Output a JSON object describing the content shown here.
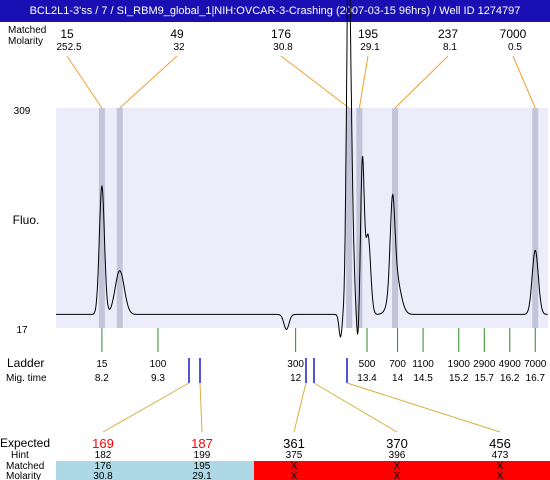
{
  "title": "BCL2L1-3'ss / 7 / SI_RBM9_global_1|NIH:OVCAR-3-Crashing (2007-03-15 96hrs) / Well ID 1274797",
  "colors": {
    "title_bg": "#1a0fb3",
    "plot_bg": "#ececfb",
    "peak_band": "#c4c4d8",
    "peak_connector": "#f0a030",
    "ladder_tick": "#2a8a2a",
    "marker_tick": "#1a1acc",
    "expected_connector": "#d8b040",
    "matched_bg": "#add8e6",
    "unmatched_bg": "#ff0000",
    "expected_matched_text": "#ff0000"
  },
  "top_table": {
    "row1_label": "Matched",
    "row2_label": "Molarity",
    "peaks": [
      {
        "size": "15",
        "molarity": "252.5"
      },
      {
        "size": "49",
        "molarity": "32"
      },
      {
        "size": "176",
        "molarity": "30.8"
      },
      {
        "size": "195",
        "molarity": "29.1"
      },
      {
        "size": "237",
        "molarity": "8.1"
      },
      {
        "size": "7000",
        "molarity": "0.5"
      }
    ]
  },
  "chart_data": {
    "type": "line",
    "ylabel": "Fluo.",
    "ylim": [
      17,
      309
    ],
    "y_tick_labels": [
      "309",
      "17"
    ],
    "x_axis": "migration time",
    "peak_times": [
      8.2,
      8.55,
      13.05,
      13.25,
      13.95,
      16.7
    ],
    "trace": {
      "baseline": 35,
      "peaks": [
        {
          "t": 8.2,
          "h": 170,
          "w": 0.05
        },
        {
          "t": 8.55,
          "h": 58,
          "w": 0.09
        },
        {
          "t": 11.82,
          "h": -20,
          "w": 0.05
        },
        {
          "t": 12.88,
          "h": -30,
          "w": 0.03
        },
        {
          "t": 13.03,
          "h": 300,
          "w": 0.035
        },
        {
          "t": 13.07,
          "h": 255,
          "w": 0.05
        },
        {
          "t": 13.22,
          "h": -35,
          "w": 0.025
        },
        {
          "t": 13.31,
          "h": 200,
          "w": 0.035
        },
        {
          "t": 13.42,
          "h": 105,
          "w": 0.05
        },
        {
          "t": 13.9,
          "h": 110,
          "w": 0.045
        },
        {
          "t": 13.95,
          "h": 55,
          "w": 0.1
        },
        {
          "t": 16.7,
          "h": 85,
          "w": 0.06
        }
      ]
    },
    "ladder": {
      "label": "Ladder",
      "time_label": "Mig. time",
      "items": [
        {
          "size": "15",
          "time": "8.2"
        },
        {
          "size": "100",
          "time": "9.3"
        },
        {
          "size": "300",
          "time": "12"
        },
        {
          "size": "500",
          "time": "13.4"
        },
        {
          "size": "700",
          "time": "14"
        },
        {
          "size": "1100",
          "time": "14.5"
        },
        {
          "size": "1900",
          "time": "15.2"
        },
        {
          "size": "2900",
          "time": "15.7"
        },
        {
          "size": "4900",
          "time": "16.2"
        },
        {
          "size": "7000",
          "time": "16.7"
        }
      ]
    }
  },
  "bottom_table": {
    "expected_label": "Expected",
    "hint_label": "Hint",
    "matched_label": "Matched",
    "molarity_label": "Molarity",
    "columns": [
      {
        "expected": "169",
        "hint": "182",
        "matched": "176",
        "molarity": "30.8",
        "is_matched": true
      },
      {
        "expected": "187",
        "hint": "199",
        "matched": "195",
        "molarity": "29.1",
        "is_matched": true
      },
      {
        "expected": "361",
        "hint": "375",
        "matched": "X",
        "molarity": "X",
        "is_matched": false
      },
      {
        "expected": "370",
        "hint": "396",
        "matched": "X",
        "molarity": "X",
        "is_matched": false
      },
      {
        "expected": "456",
        "hint": "473",
        "matched": "X",
        "molarity": "X",
        "is_matched": false
      }
    ]
  }
}
